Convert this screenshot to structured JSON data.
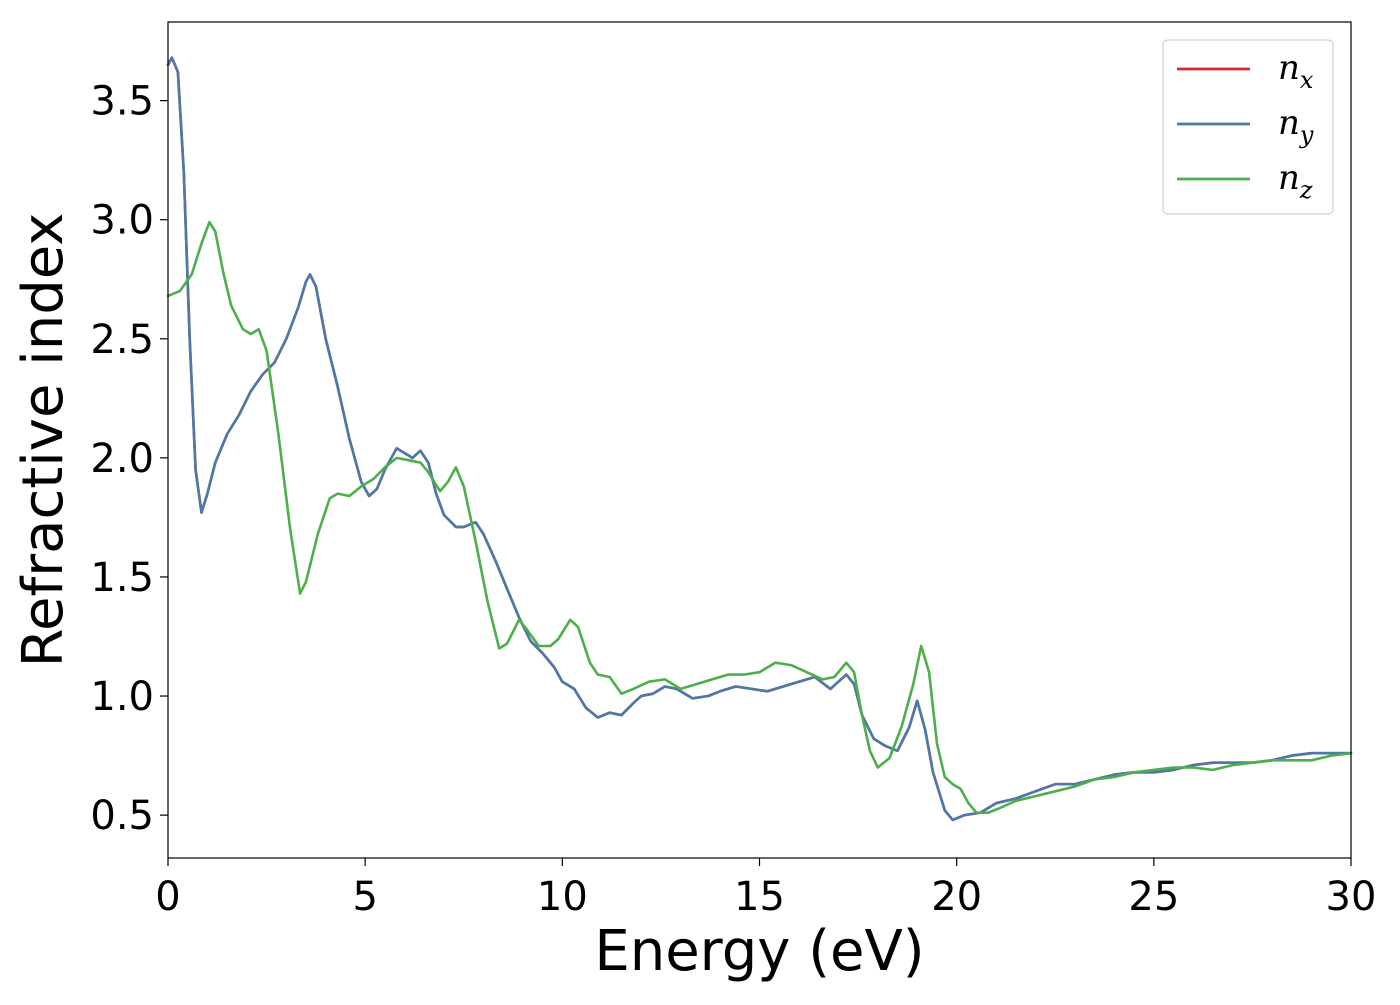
{
  "chart_data": {
    "type": "line",
    "title": "",
    "xlabel": "Energy (eV)",
    "ylabel": "Refractive index",
    "xlim": [
      0,
      30
    ],
    "ylim": [
      0.32,
      3.83
    ],
    "x_ticks": [
      0,
      5,
      10,
      15,
      20,
      25,
      30
    ],
    "y_ticks": [
      0.5,
      1.0,
      1.5,
      2.0,
      2.5,
      3.0,
      3.5
    ],
    "x_tick_labels": [
      "0",
      "5",
      "10",
      "15",
      "20",
      "25",
      "30"
    ],
    "y_tick_labels": [
      "0.5",
      "1.0",
      "1.5",
      "2.0",
      "2.5",
      "3.0",
      "3.5"
    ],
    "grid": false,
    "legend_position": "top-right",
    "colors": {
      "nx": "#d62728",
      "ny": "#4a79aa",
      "nz": "#4daf4a"
    },
    "series": [
      {
        "name": "n",
        "subscript": "x",
        "color": "#d62728",
        "points": [
          [
            0,
            3.65
          ],
          [
            0.1,
            3.68
          ],
          [
            0.25,
            3.62
          ],
          [
            0.4,
            3.2
          ],
          [
            0.55,
            2.5
          ],
          [
            0.7,
            1.95
          ],
          [
            0.85,
            1.77
          ],
          [
            1.0,
            1.85
          ],
          [
            1.2,
            1.98
          ],
          [
            1.5,
            2.1
          ],
          [
            1.8,
            2.18
          ],
          [
            2.1,
            2.28
          ],
          [
            2.4,
            2.35
          ],
          [
            2.7,
            2.4
          ],
          [
            3.0,
            2.5
          ],
          [
            3.3,
            2.63
          ],
          [
            3.5,
            2.74
          ],
          [
            3.6,
            2.77
          ],
          [
            3.75,
            2.72
          ],
          [
            4.0,
            2.5
          ],
          [
            4.3,
            2.3
          ],
          [
            4.6,
            2.08
          ],
          [
            4.9,
            1.9
          ],
          [
            5.1,
            1.84
          ],
          [
            5.3,
            1.87
          ],
          [
            5.5,
            1.95
          ],
          [
            5.8,
            2.04
          ],
          [
            6.0,
            2.02
          ],
          [
            6.2,
            2.0
          ],
          [
            6.4,
            2.03
          ],
          [
            6.6,
            1.98
          ],
          [
            6.8,
            1.85
          ],
          [
            7.0,
            1.76
          ],
          [
            7.3,
            1.71
          ],
          [
            7.5,
            1.71
          ],
          [
            7.8,
            1.73
          ],
          [
            8.0,
            1.68
          ],
          [
            8.3,
            1.57
          ],
          [
            8.6,
            1.45
          ],
          [
            8.9,
            1.33
          ],
          [
            9.2,
            1.23
          ],
          [
            9.5,
            1.18
          ],
          [
            9.8,
            1.12
          ],
          [
            10.0,
            1.06
          ],
          [
            10.3,
            1.03
          ],
          [
            10.6,
            0.95
          ],
          [
            10.9,
            0.91
          ],
          [
            11.2,
            0.93
          ],
          [
            11.5,
            0.92
          ],
          [
            11.8,
            0.97
          ],
          [
            12.0,
            1.0
          ],
          [
            12.3,
            1.01
          ],
          [
            12.6,
            1.04
          ],
          [
            12.9,
            1.03
          ],
          [
            13.3,
            0.99
          ],
          [
            13.7,
            1.0
          ],
          [
            14.0,
            1.02
          ],
          [
            14.4,
            1.04
          ],
          [
            14.8,
            1.03
          ],
          [
            15.2,
            1.02
          ],
          [
            15.6,
            1.04
          ],
          [
            16.0,
            1.06
          ],
          [
            16.4,
            1.08
          ],
          [
            16.8,
            1.03
          ],
          [
            17.0,
            1.06
          ],
          [
            17.2,
            1.09
          ],
          [
            17.4,
            1.05
          ],
          [
            17.6,
            0.92
          ],
          [
            17.9,
            0.82
          ],
          [
            18.2,
            0.79
          ],
          [
            18.5,
            0.77
          ],
          [
            18.8,
            0.87
          ],
          [
            19.0,
            0.98
          ],
          [
            19.2,
            0.86
          ],
          [
            19.4,
            0.68
          ],
          [
            19.7,
            0.52
          ],
          [
            19.9,
            0.48
          ],
          [
            20.2,
            0.5
          ],
          [
            20.6,
            0.51
          ],
          [
            21.0,
            0.55
          ],
          [
            21.5,
            0.57
          ],
          [
            22.0,
            0.6
          ],
          [
            22.5,
            0.63
          ],
          [
            23.0,
            0.63
          ],
          [
            23.5,
            0.65
          ],
          [
            24.0,
            0.67
          ],
          [
            24.5,
            0.68
          ],
          [
            25.0,
            0.68
          ],
          [
            25.5,
            0.69
          ],
          [
            26.0,
            0.71
          ],
          [
            26.5,
            0.72
          ],
          [
            27.0,
            0.72
          ],
          [
            27.5,
            0.72
          ],
          [
            28.0,
            0.73
          ],
          [
            28.5,
            0.75
          ],
          [
            29.0,
            0.76
          ],
          [
            29.5,
            0.76
          ],
          [
            30.0,
            0.76
          ]
        ]
      },
      {
        "name": "n",
        "subscript": "y",
        "color": "#4a79aa",
        "points": [
          [
            0,
            3.65
          ],
          [
            0.1,
            3.68
          ],
          [
            0.25,
            3.62
          ],
          [
            0.4,
            3.2
          ],
          [
            0.55,
            2.5
          ],
          [
            0.7,
            1.95
          ],
          [
            0.85,
            1.77
          ],
          [
            1.0,
            1.85
          ],
          [
            1.2,
            1.98
          ],
          [
            1.5,
            2.1
          ],
          [
            1.8,
            2.18
          ],
          [
            2.1,
            2.28
          ],
          [
            2.4,
            2.35
          ],
          [
            2.7,
            2.4
          ],
          [
            3.0,
            2.5
          ],
          [
            3.3,
            2.63
          ],
          [
            3.5,
            2.74
          ],
          [
            3.6,
            2.77
          ],
          [
            3.75,
            2.72
          ],
          [
            4.0,
            2.5
          ],
          [
            4.3,
            2.3
          ],
          [
            4.6,
            2.08
          ],
          [
            4.9,
            1.9
          ],
          [
            5.1,
            1.84
          ],
          [
            5.3,
            1.87
          ],
          [
            5.5,
            1.95
          ],
          [
            5.8,
            2.04
          ],
          [
            6.0,
            2.02
          ],
          [
            6.2,
            2.0
          ],
          [
            6.4,
            2.03
          ],
          [
            6.6,
            1.98
          ],
          [
            6.8,
            1.85
          ],
          [
            7.0,
            1.76
          ],
          [
            7.3,
            1.71
          ],
          [
            7.5,
            1.71
          ],
          [
            7.8,
            1.73
          ],
          [
            8.0,
            1.68
          ],
          [
            8.3,
            1.57
          ],
          [
            8.6,
            1.45
          ],
          [
            8.9,
            1.33
          ],
          [
            9.2,
            1.23
          ],
          [
            9.5,
            1.18
          ],
          [
            9.8,
            1.12
          ],
          [
            10.0,
            1.06
          ],
          [
            10.3,
            1.03
          ],
          [
            10.6,
            0.95
          ],
          [
            10.9,
            0.91
          ],
          [
            11.2,
            0.93
          ],
          [
            11.5,
            0.92
          ],
          [
            11.8,
            0.97
          ],
          [
            12.0,
            1.0
          ],
          [
            12.3,
            1.01
          ],
          [
            12.6,
            1.04
          ],
          [
            12.9,
            1.03
          ],
          [
            13.3,
            0.99
          ],
          [
            13.7,
            1.0
          ],
          [
            14.0,
            1.02
          ],
          [
            14.4,
            1.04
          ],
          [
            14.8,
            1.03
          ],
          [
            15.2,
            1.02
          ],
          [
            15.6,
            1.04
          ],
          [
            16.0,
            1.06
          ],
          [
            16.4,
            1.08
          ],
          [
            16.8,
            1.03
          ],
          [
            17.0,
            1.06
          ],
          [
            17.2,
            1.09
          ],
          [
            17.4,
            1.05
          ],
          [
            17.6,
            0.92
          ],
          [
            17.9,
            0.82
          ],
          [
            18.2,
            0.79
          ],
          [
            18.5,
            0.77
          ],
          [
            18.8,
            0.87
          ],
          [
            19.0,
            0.98
          ],
          [
            19.2,
            0.86
          ],
          [
            19.4,
            0.68
          ],
          [
            19.7,
            0.52
          ],
          [
            19.9,
            0.48
          ],
          [
            20.2,
            0.5
          ],
          [
            20.6,
            0.51
          ],
          [
            21.0,
            0.55
          ],
          [
            21.5,
            0.57
          ],
          [
            22.0,
            0.6
          ],
          [
            22.5,
            0.63
          ],
          [
            23.0,
            0.63
          ],
          [
            23.5,
            0.65
          ],
          [
            24.0,
            0.67
          ],
          [
            24.5,
            0.68
          ],
          [
            25.0,
            0.68
          ],
          [
            25.5,
            0.69
          ],
          [
            26.0,
            0.71
          ],
          [
            26.5,
            0.72
          ],
          [
            27.0,
            0.72
          ],
          [
            27.5,
            0.72
          ],
          [
            28.0,
            0.73
          ],
          [
            28.5,
            0.75
          ],
          [
            29.0,
            0.76
          ],
          [
            29.5,
            0.76
          ],
          [
            30.0,
            0.76
          ]
        ]
      },
      {
        "name": "n",
        "subscript": "z",
        "color": "#4daf4a",
        "points": [
          [
            0,
            2.68
          ],
          [
            0.3,
            2.7
          ],
          [
            0.6,
            2.77
          ],
          [
            0.85,
            2.9
          ],
          [
            1.05,
            2.99
          ],
          [
            1.2,
            2.95
          ],
          [
            1.4,
            2.78
          ],
          [
            1.6,
            2.64
          ],
          [
            1.9,
            2.54
          ],
          [
            2.1,
            2.52
          ],
          [
            2.3,
            2.54
          ],
          [
            2.5,
            2.45
          ],
          [
            2.8,
            2.1
          ],
          [
            3.1,
            1.7
          ],
          [
            3.35,
            1.43
          ],
          [
            3.5,
            1.48
          ],
          [
            3.8,
            1.68
          ],
          [
            4.1,
            1.83
          ],
          [
            4.3,
            1.85
          ],
          [
            4.6,
            1.84
          ],
          [
            4.9,
            1.88
          ],
          [
            5.2,
            1.91
          ],
          [
            5.5,
            1.96
          ],
          [
            5.8,
            2.0
          ],
          [
            6.1,
            1.99
          ],
          [
            6.4,
            1.98
          ],
          [
            6.6,
            1.94
          ],
          [
            6.9,
            1.86
          ],
          [
            7.1,
            1.9
          ],
          [
            7.3,
            1.96
          ],
          [
            7.5,
            1.88
          ],
          [
            7.8,
            1.65
          ],
          [
            8.1,
            1.4
          ],
          [
            8.4,
            1.2
          ],
          [
            8.6,
            1.22
          ],
          [
            8.9,
            1.32
          ],
          [
            9.1,
            1.28
          ],
          [
            9.4,
            1.21
          ],
          [
            9.7,
            1.21
          ],
          [
            9.9,
            1.24
          ],
          [
            10.2,
            1.32
          ],
          [
            10.4,
            1.29
          ],
          [
            10.7,
            1.14
          ],
          [
            10.9,
            1.09
          ],
          [
            11.2,
            1.08
          ],
          [
            11.5,
            1.01
          ],
          [
            11.8,
            1.03
          ],
          [
            12.2,
            1.06
          ],
          [
            12.6,
            1.07
          ],
          [
            13.0,
            1.03
          ],
          [
            13.4,
            1.05
          ],
          [
            13.8,
            1.07
          ],
          [
            14.2,
            1.09
          ],
          [
            14.6,
            1.09
          ],
          [
            15.0,
            1.1
          ],
          [
            15.4,
            1.14
          ],
          [
            15.8,
            1.13
          ],
          [
            16.2,
            1.1
          ],
          [
            16.6,
            1.07
          ],
          [
            16.9,
            1.08
          ],
          [
            17.2,
            1.14
          ],
          [
            17.4,
            1.1
          ],
          [
            17.6,
            0.92
          ],
          [
            17.8,
            0.77
          ],
          [
            18.0,
            0.7
          ],
          [
            18.3,
            0.74
          ],
          [
            18.6,
            0.87
          ],
          [
            18.9,
            1.05
          ],
          [
            19.1,
            1.21
          ],
          [
            19.3,
            1.1
          ],
          [
            19.5,
            0.8
          ],
          [
            19.7,
            0.66
          ],
          [
            19.9,
            0.63
          ],
          [
            20.1,
            0.61
          ],
          [
            20.3,
            0.55
          ],
          [
            20.5,
            0.51
          ],
          [
            20.8,
            0.51
          ],
          [
            21.1,
            0.53
          ],
          [
            21.5,
            0.56
          ],
          [
            22.0,
            0.58
          ],
          [
            22.5,
            0.6
          ],
          [
            23.0,
            0.62
          ],
          [
            23.5,
            0.65
          ],
          [
            24.0,
            0.66
          ],
          [
            24.5,
            0.68
          ],
          [
            25.0,
            0.69
          ],
          [
            25.5,
            0.7
          ],
          [
            26.0,
            0.7
          ],
          [
            26.5,
            0.69
          ],
          [
            27.0,
            0.71
          ],
          [
            27.5,
            0.72
          ],
          [
            28.0,
            0.73
          ],
          [
            28.5,
            0.73
          ],
          [
            29.0,
            0.73
          ],
          [
            29.5,
            0.75
          ],
          [
            30.0,
            0.76
          ]
        ]
      }
    ]
  }
}
